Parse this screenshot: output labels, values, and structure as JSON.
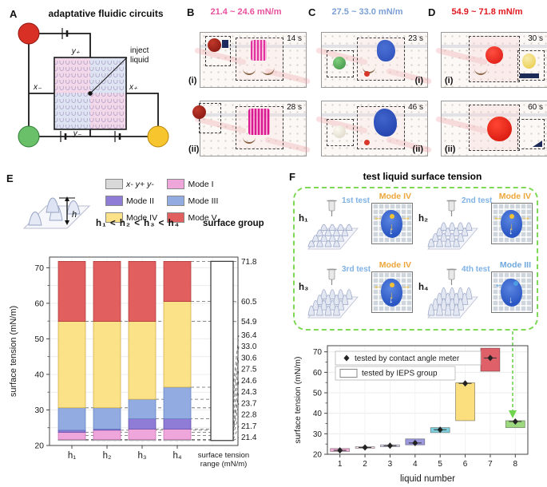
{
  "panels": {
    "A": {
      "label": "A",
      "title": "adaptative fluidic circuits",
      "inject1": "inject",
      "inject2": "liquid",
      "y_plus": "y₊",
      "y_minus": "y₋",
      "x_minus": "x₋",
      "x_plus": "x₊"
    },
    "B": {
      "label": "B",
      "title": "21.4 ~ 24.6 mN/m",
      "accent": "#E8519F",
      "frames": [
        {
          "tag": "(i)",
          "time": "14 s"
        },
        {
          "tag": "(ii)",
          "time": "28 s"
        }
      ]
    },
    "C": {
      "label": "C",
      "title": "27.5 ~ 33.0 mN/m",
      "accent": "#7B9FD4",
      "frames": [
        {
          "tag": "(i)",
          "time": "23 s"
        },
        {
          "tag": "(ii)",
          "time": "46 s"
        }
      ]
    },
    "D": {
      "label": "D",
      "title": "54.9 ~ 71.8 mN/m",
      "accent": "#E0181F",
      "frames": [
        {
          "tag": "(i)",
          "time": "30 s"
        },
        {
          "tag": "(ii)",
          "time": "60 s"
        }
      ]
    },
    "E": {
      "label": "E",
      "h_label": "h",
      "inequality": "h₁ < h₂ < h₃ < h₄",
      "surface_group": "surface group",
      "legend": [
        {
          "label": "x- y+ y-",
          "color": "#D9D9D9"
        },
        {
          "label": "Mode I",
          "color": "#EFA6DA"
        },
        {
          "label": "Mode II",
          "color": "#8F7CD6"
        },
        {
          "label": "Mode III",
          "color": "#92ACE2"
        },
        {
          "label": "Mode IV",
          "color": "#FBE289"
        },
        {
          "label": "Mode V",
          "color": "#E25F5F"
        }
      ]
    },
    "F": {
      "label": "F",
      "title": "test liquid surface tension",
      "order_color": "#7FB2E5",
      "tests": [
        {
          "h": "h₁",
          "order": "1st test",
          "mode": "Mode IV",
          "mode_color": "#EDA63A",
          "cone_h": 10
        },
        {
          "h": "h₂",
          "order": "2nd test",
          "mode": "Mode IV",
          "mode_color": "#EDA63A",
          "cone_h": 13
        },
        {
          "h": "h₃",
          "order": "3rd test",
          "mode": "Mode IV",
          "mode_color": "#EDA63A",
          "cone_h": 16
        },
        {
          "h": "h₄",
          "order": "4th test",
          "mode": "Mode III",
          "mode_color": "#6FA8DC",
          "cone_h": 19
        }
      ]
    }
  },
  "chart_data": [
    {
      "type": "bar",
      "stacked": true,
      "panel": "E",
      "ylabel": "surface tension (mN/m)",
      "ylim": [
        20,
        73
      ],
      "yticks": [
        20,
        30,
        40,
        50,
        60,
        70
      ],
      "categories": [
        "h₁",
        "h₂",
        "h₃",
        "h₄"
      ],
      "baseline": 21.4,
      "grid": true,
      "series": [
        {
          "name": "x- y+ y-",
          "color": "#D9D9D9",
          "edge": "#8C8C8C",
          "tops": [
            21.7,
            21.7,
            21.7,
            21.7
          ]
        },
        {
          "name": "Mode I",
          "color": "#EFA6DA",
          "edge": "#C46CB4",
          "tops": [
            23.7,
            24.3,
            24.6,
            24.6
          ]
        },
        {
          "name": "Mode II",
          "color": "#8F7CD6",
          "edge": "#5F4BA8",
          "tops": [
            24.3,
            24.6,
            27.5,
            27.5
          ]
        },
        {
          "name": "Mode III",
          "color": "#92ACE2",
          "edge": "#5E7BC0",
          "tops": [
            30.6,
            30.6,
            33.0,
            36.4
          ]
        },
        {
          "name": "Mode IV",
          "color": "#FBE289",
          "edge": "#C9A93F",
          "tops": [
            54.9,
            54.9,
            54.9,
            60.5
          ]
        },
        {
          "name": "Mode V",
          "color": "#E25F5F",
          "edge": "#A83434",
          "tops": [
            71.8,
            71.8,
            71.8,
            71.8
          ]
        }
      ],
      "range_bar": {
        "label_line1": "surface tension",
        "label_line2": "range (mN/m)",
        "min": 21.4,
        "max": 71.8,
        "labels": [
          71.8,
          60.5,
          54.9,
          36.4,
          33.0,
          30.6,
          27.5,
          24.6,
          24.3,
          23.7,
          22.8,
          21.7,
          21.4
        ],
        "leader_from": [
          3,
          3,
          0,
          3,
          2,
          0,
          2,
          2,
          1,
          0,
          0,
          0,
          0
        ]
      }
    },
    {
      "type": "box-scatter",
      "panel": "F",
      "xlabel": "liquid number",
      "ylabel": "surface tension (mN/m)",
      "ylim": [
        20,
        73
      ],
      "yticks": [
        20,
        30,
        40,
        50,
        60,
        70
      ],
      "xticks": [
        1,
        2,
        3,
        4,
        5,
        6,
        7,
        8
      ],
      "grid": true,
      "legend": [
        {
          "marker": "diamond",
          "label": "tested by contact angle meter"
        },
        {
          "marker": "box",
          "label": "tested by IEPS group"
        }
      ],
      "items": [
        {
          "liquid": 1,
          "range": [
            21.4,
            22.8
          ],
          "color": "#F2AFD6",
          "point": 21.9
        },
        {
          "liquid": 2,
          "range": [
            22.9,
            23.7
          ],
          "color": "#F6DCEA",
          "point": 23.3
        },
        {
          "liquid": 3,
          "range": [
            23.7,
            24.6
          ],
          "color": "#D9D3EE",
          "point": 24.2
        },
        {
          "liquid": 4,
          "range": [
            24.6,
            27.5
          ],
          "color": "#9D99DF",
          "point": 25.5
        },
        {
          "liquid": 5,
          "range": [
            30.6,
            33.0
          ],
          "color": "#7FD0DC",
          "point": 32.0
        },
        {
          "liquid": 6,
          "range": [
            36.4,
            54.9
          ],
          "color": "#FBDF7E",
          "point": 54.6
        },
        {
          "liquid": 7,
          "range": [
            60.5,
            71.8
          ],
          "color": "#E0606A",
          "point": 67.0
        },
        {
          "liquid": 8,
          "range": [
            33.0,
            36.4
          ],
          "color": "#9CD97E",
          "point": 36.0
        }
      ],
      "arrow_color": "#6FD44E"
    }
  ]
}
